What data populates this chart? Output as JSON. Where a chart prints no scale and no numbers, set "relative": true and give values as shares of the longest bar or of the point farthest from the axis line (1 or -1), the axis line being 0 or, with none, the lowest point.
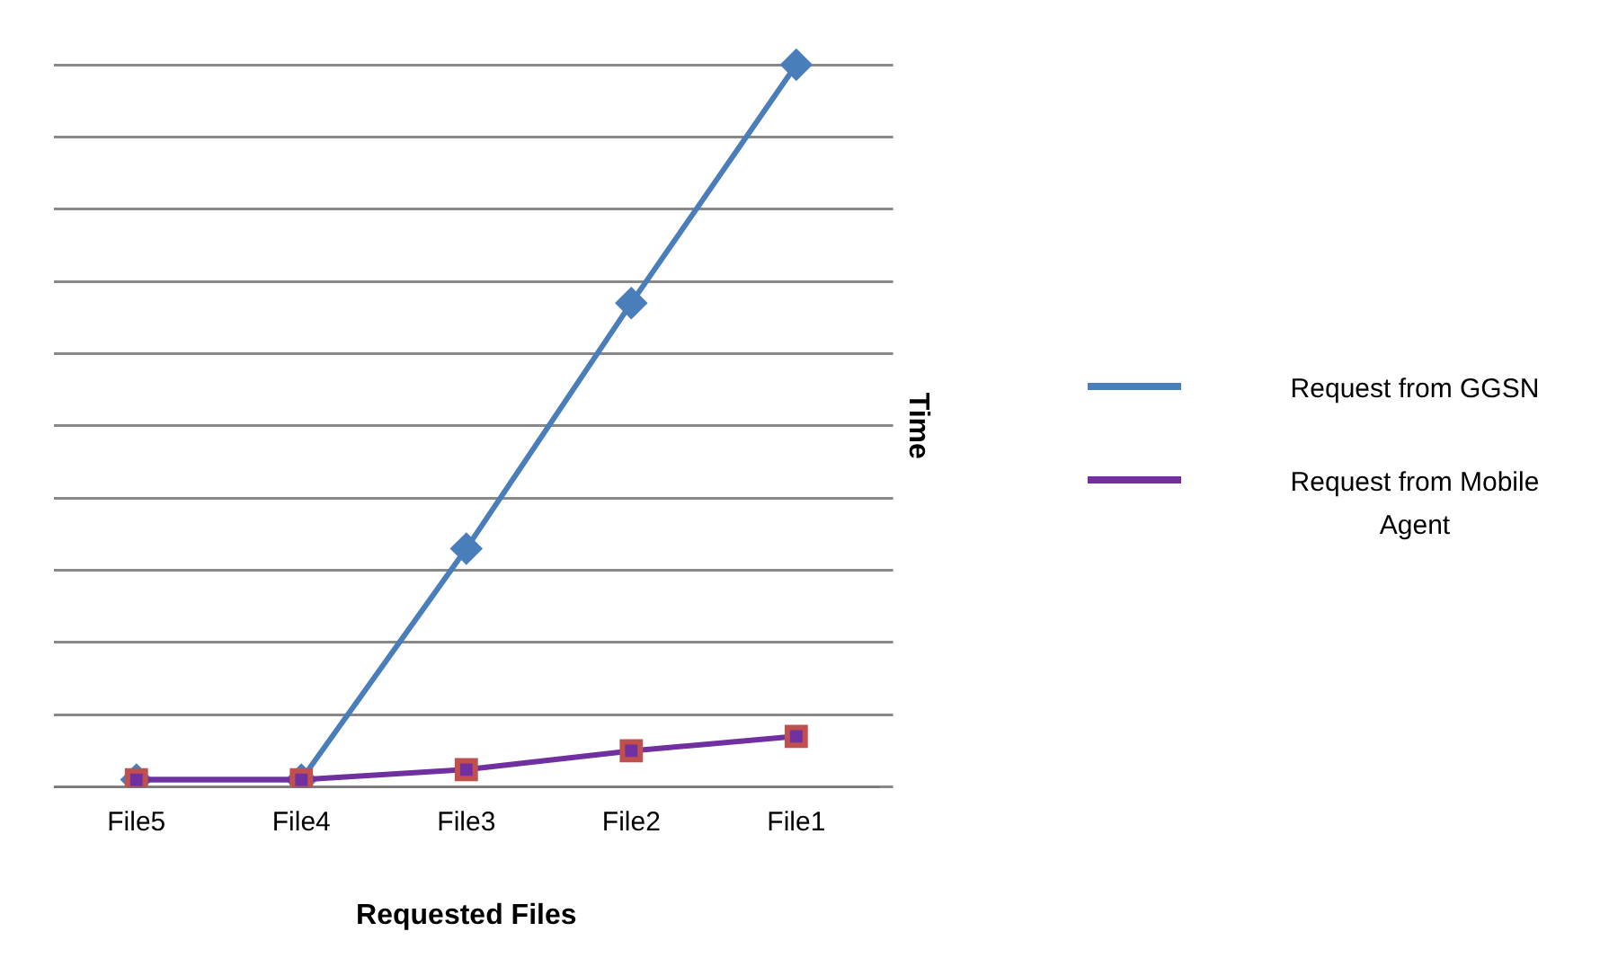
{
  "chart_data": {
    "type": "line",
    "xlabel": "Requested Files",
    "ylabel": "Time",
    "categories": [
      "File5",
      "File4",
      "File3",
      "File2",
      "File1"
    ],
    "relative": true,
    "grid": "y",
    "legend": "right",
    "series": [
      {
        "name": "Request from GGSN",
        "color": "#4a7ebb",
        "marker": "diamond",
        "values": [
          0.01,
          0.01,
          0.33,
          0.67,
          1
        ]
      },
      {
        "name": "Request from Mobile Agent",
        "color": "#7030a0",
        "marker": "square",
        "values": [
          0.01,
          0.01,
          0.024,
          0.05,
          0.07
        ]
      }
    ]
  }
}
